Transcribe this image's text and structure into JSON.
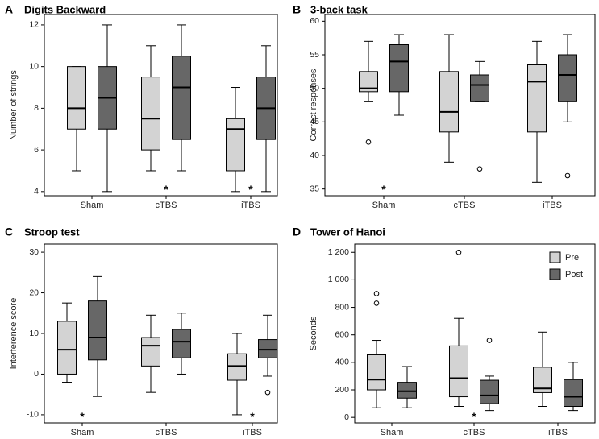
{
  "colors": {
    "pre": "#d3d3d3",
    "post": "#676767"
  },
  "legend": {
    "items": [
      "Pre",
      "Post"
    ],
    "placement": "top-right of panel D"
  },
  "chart_data": [
    {
      "type": "box",
      "panel": "A",
      "title": "Digits Backward",
      "xlabel": "",
      "ylabel": "Number of strings",
      "ylim": [
        3.8,
        12.5
      ],
      "yticks": [
        4,
        6,
        8,
        10,
        12
      ],
      "ytick_labels": [
        "4",
        "6",
        "8",
        "10",
        "12"
      ],
      "categories": [
        "Sham",
        "cTBS",
        "iTBS"
      ],
      "series": [
        {
          "name": "Pre",
          "boxes": [
            {
              "whislo": 5,
              "q1": 7,
              "med": 8,
              "q3": 10,
              "whishi": 10,
              "fliers": []
            },
            {
              "whislo": 5,
              "q1": 6,
              "med": 7.5,
              "q3": 9.5,
              "whishi": 11,
              "fliers": []
            },
            {
              "whislo": 4,
              "q1": 5,
              "med": 7,
              "q3": 7.5,
              "whishi": 9,
              "fliers": []
            }
          ]
        },
        {
          "name": "Post",
          "boxes": [
            {
              "whislo": 4,
              "q1": 7,
              "med": 8.5,
              "q3": 10,
              "whishi": 12,
              "fliers": []
            },
            {
              "whislo": 5,
              "q1": 6.5,
              "med": 9,
              "q3": 10.5,
              "whishi": 12,
              "fliers": []
            },
            {
              "whislo": 4,
              "q1": 6.5,
              "med": 8,
              "q3": 9.5,
              "whishi": 11,
              "fliers": []
            }
          ]
        }
      ],
      "significance": [
        {
          "category": "cTBS",
          "symbol": "*"
        },
        {
          "category": "iTBS",
          "symbol": "*"
        }
      ]
    },
    {
      "type": "box",
      "panel": "B",
      "title": "3-back task",
      "xlabel": "",
      "ylabel": "Correct responses",
      "ylim": [
        34,
        61
      ],
      "yticks": [
        35,
        40,
        45,
        50,
        55,
        60
      ],
      "ytick_labels": [
        "35",
        "40",
        "45",
        "50",
        "55",
        "60"
      ],
      "categories": [
        "Sham",
        "cTBS",
        "iTBS"
      ],
      "series": [
        {
          "name": "Pre",
          "boxes": [
            {
              "whislo": 48,
              "q1": 49.5,
              "med": 50,
              "q3": 52.5,
              "whishi": 57,
              "fliers": [
                42
              ]
            },
            {
              "whislo": 39,
              "q1": 43.5,
              "med": 46.5,
              "q3": 52.5,
              "whishi": 58,
              "fliers": []
            },
            {
              "whislo": 36,
              "q1": 43.5,
              "med": 51,
              "q3": 53.5,
              "whishi": 57,
              "fliers": []
            }
          ]
        },
        {
          "name": "Post",
          "boxes": [
            {
              "whislo": 46,
              "q1": 49.5,
              "med": 54,
              "q3": 56.5,
              "whishi": 58,
              "fliers": []
            },
            {
              "whislo": 48,
              "q1": 48,
              "med": 50.5,
              "q3": 52,
              "whishi": 54,
              "fliers": [
                38
              ]
            },
            {
              "whislo": 45,
              "q1": 48,
              "med": 52,
              "q3": 55,
              "whishi": 58,
              "fliers": [
                37
              ]
            }
          ]
        }
      ],
      "significance": [
        {
          "category": "Sham",
          "symbol": "*"
        }
      ]
    },
    {
      "type": "box",
      "panel": "C",
      "title": "Stroop test",
      "xlabel": "",
      "ylabel": "Interference score",
      "ylim": [
        -12,
        32
      ],
      "yticks": [
        -10,
        0,
        10,
        20,
        30
      ],
      "ytick_labels": [
        "-10",
        "0",
        "10",
        "20",
        "30"
      ],
      "categories": [
        "Sham",
        "cTBS",
        "iTBS"
      ],
      "series": [
        {
          "name": "Pre",
          "boxes": [
            {
              "whislo": -2,
              "q1": 0,
              "med": 6,
              "q3": 13,
              "whishi": 17.5,
              "fliers": []
            },
            {
              "whislo": -4.5,
              "q1": 2,
              "med": 7,
              "q3": 9,
              "whishi": 14.5,
              "fliers": []
            },
            {
              "whislo": -10,
              "q1": -1.5,
              "med": 2,
              "q3": 5,
              "whishi": 10,
              "fliers": []
            }
          ]
        },
        {
          "name": "Post",
          "boxes": [
            {
              "whislo": -5.5,
              "q1": 3.5,
              "med": 9,
              "q3": 18,
              "whishi": 24,
              "fliers": []
            },
            {
              "whislo": 0,
              "q1": 4,
              "med": 8,
              "q3": 11,
              "whishi": 15,
              "fliers": []
            },
            {
              "whislo": -0.5,
              "q1": 4,
              "med": 6,
              "q3": 8.5,
              "whishi": 14.5,
              "fliers": [
                -4.5
              ]
            }
          ]
        }
      ],
      "significance": [
        {
          "category": "Sham",
          "symbol": "*"
        },
        {
          "category": "iTBS",
          "symbol": "*"
        }
      ]
    },
    {
      "type": "box",
      "panel": "D",
      "title": "Tower of Hanoi",
      "xlabel": "",
      "ylabel": "Seconds",
      "ylim": [
        -40,
        1260
      ],
      "yticks": [
        0,
        200,
        400,
        600,
        800,
        1000,
        1200
      ],
      "ytick_labels": [
        "0",
        "200",
        "400",
        "600",
        "800",
        "1 000",
        "1 200"
      ],
      "categories": [
        "Sham",
        "cTBS",
        "iTBS"
      ],
      "series": [
        {
          "name": "Pre",
          "boxes": [
            {
              "whislo": 70,
              "q1": 200,
              "med": 275,
              "q3": 455,
              "whishi": 560,
              "fliers": [
                830,
                900
              ]
            },
            {
              "whislo": 80,
              "q1": 150,
              "med": 285,
              "q3": 520,
              "whishi": 720,
              "fliers": [
                1200
              ]
            },
            {
              "whislo": 80,
              "q1": 180,
              "med": 210,
              "q3": 365,
              "whishi": 620,
              "fliers": []
            }
          ]
        },
        {
          "name": "Post",
          "boxes": [
            {
              "whislo": 70,
              "q1": 140,
              "med": 190,
              "q3": 255,
              "whishi": 370,
              "fliers": []
            },
            {
              "whislo": 50,
              "q1": 100,
              "med": 160,
              "q3": 270,
              "whishi": 300,
              "fliers": [
                560
              ]
            },
            {
              "whislo": 50,
              "q1": 80,
              "med": 150,
              "q3": 275,
              "whishi": 400,
              "fliers": []
            }
          ]
        }
      ],
      "significance": [
        {
          "category": "cTBS",
          "symbol": "*"
        }
      ]
    }
  ]
}
